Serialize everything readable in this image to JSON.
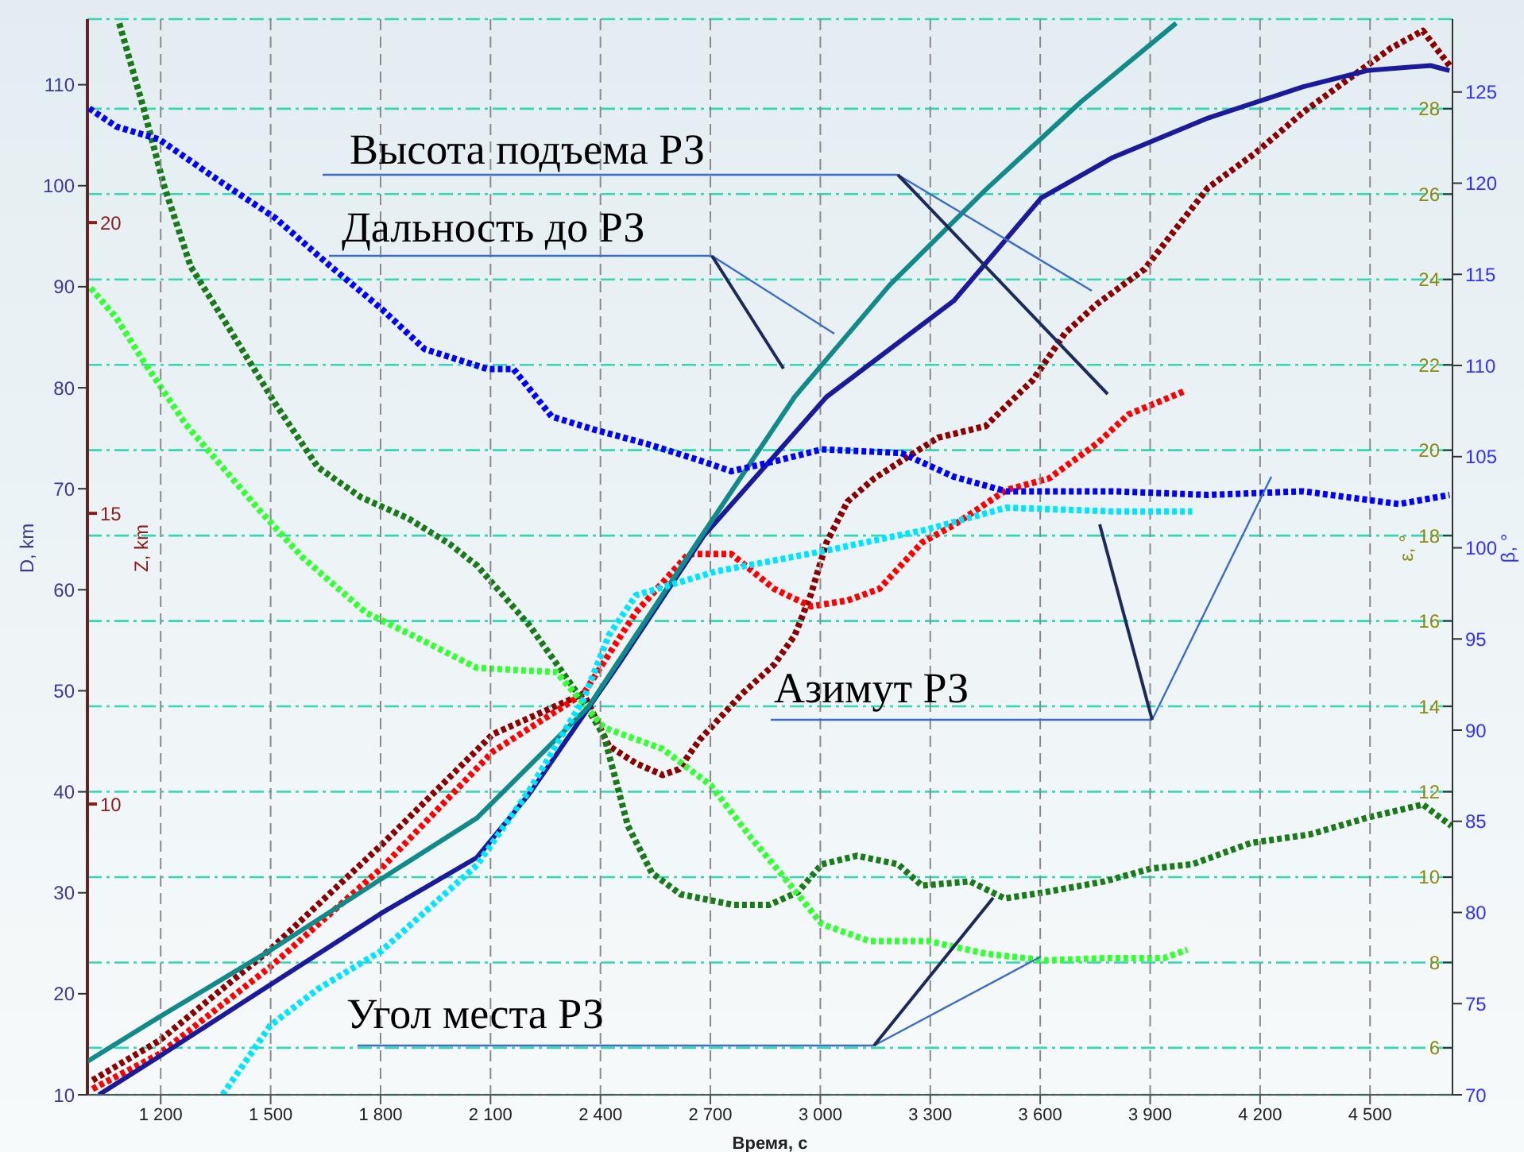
{
  "chart_data": [
    {
      "type": "line",
      "xlabel": "Время, с",
      "ylabel": "D, km",
      "y2label": "β, °",
      "xlim": [
        1000,
        4725
      ],
      "xticks": [
        {
          "value": 1200,
          "label": "1 200"
        },
        {
          "value": 1500,
          "label": "1 500"
        },
        {
          "value": 1800,
          "label": "1 800"
        },
        {
          "value": 2100,
          "label": "2 100"
        },
        {
          "value": 2400,
          "label": "2 400"
        },
        {
          "value": 2700,
          "label": "2 700"
        },
        {
          "value": 3000,
          "label": "3 000"
        },
        {
          "value": 3300,
          "label": "3 300"
        },
        {
          "value": 3600,
          "label": "3 600"
        },
        {
          "value": 3900,
          "label": "3 900"
        },
        {
          "value": 4200,
          "label": "4 200"
        },
        {
          "value": 4500,
          "label": "4 500"
        }
      ],
      "ylim": [
        10,
        116.5
      ],
      "yticks": [
        10,
        20,
        30,
        40,
        50,
        60,
        70,
        80,
        90,
        100,
        110
      ],
      "y2lim": [
        70,
        129
      ],
      "y2ticks": [
        70,
        75,
        80,
        85,
        90,
        95,
        100,
        105,
        110,
        115,
        120,
        125
      ],
      "grid": "x",
      "annotations": [
        "Высота подъема РЗ",
        "Дальность до РЗ",
        "Азимут РЗ",
        "Угол места РЗ"
      ],
      "series": [
        {
          "color": "#1a1a9a",
          "axis": "y",
          "line_style": "solid",
          "x": [
            1031,
            1196,
            1499,
            1803,
            2063,
            2206,
            2453,
            2683,
            3017,
            3364,
            3603,
            3798,
            4058,
            4318,
            4492,
            4665,
            4717
          ],
          "values": [
            10.0,
            13.8,
            20.9,
            28.0,
            33.5,
            39.8,
            52.8,
            65.4,
            79.1,
            88.6,
            98.8,
            102.8,
            106.7,
            109.8,
            111.4,
            111.9,
            111.4
          ]
        },
        {
          "color": "#138a8a",
          "axis": "y",
          "line_style": "solid",
          "x": [
            1000,
            1196,
            1499,
            1803,
            2063,
            2367,
            2670,
            2930,
            3190,
            3451,
            3711,
            3971
          ],
          "values": [
            13.3,
            17.7,
            24.3,
            31.4,
            37.4,
            48.4,
            65.0,
            79.1,
            90.2,
            99.6,
            108.3,
            116.1
          ]
        },
        {
          "color": "#0000ff",
          "axis": "y2",
          "line_style": "dotted",
          "x": [
            1005,
            1079,
            1196,
            1369,
            1512,
            1660,
            1803,
            1920,
            2093,
            2163,
            2267,
            2380,
            2527,
            2670,
            2757,
            2887,
            3004,
            3221,
            3364,
            3507,
            3798,
            4058,
            4318,
            4579,
            4717
          ],
          "values": [
            124.1,
            123.1,
            122.4,
            120.0,
            118.1,
            115.5,
            113.1,
            110.9,
            109.8,
            109.8,
            107.2,
            106.5,
            105.7,
            104.8,
            104.2,
            104.8,
            105.4,
            105.2,
            103.9,
            103.1,
            103.1,
            102.9,
            103.1,
            102.4,
            102.9
          ]
        },
        {
          "color": "#00e5ff",
          "axis": "y2",
          "line_style": "dotted",
          "x": [
            1369,
            1499,
            1629,
            1803,
            2063,
            2206,
            2354,
            2423,
            2497,
            2714,
            3004,
            3290,
            3507,
            3798,
            4015
          ],
          "values": [
            70.0,
            73.8,
            75.8,
            77.9,
            82.6,
            86.7,
            91.7,
            95.2,
            97.4,
            98.7,
            99.8,
            101.0,
            102.2,
            102.0,
            102.0
          ]
        }
      ]
    },
    {
      "type": "line",
      "ylabel": "ε, °",
      "y2label": "Z, km",
      "tick_labels": "y",
      "xlim": [
        1000,
        4725
      ],
      "ylim": [
        4.9,
        30.1
      ],
      "yticks": [
        6,
        8,
        10,
        12,
        14,
        16,
        18,
        20,
        22,
        24,
        26,
        28
      ],
      "y2lim": [
        5,
        23.5
      ],
      "y2ticks": [
        10,
        15,
        20
      ],
      "grid": "y",
      "series": [
        {
          "color": "#8b0000",
          "axis": "y2",
          "line_style": "dotted",
          "x": [
            1014,
            1196,
            1499,
            1803,
            2106,
            2354,
            2423,
            2497,
            2570,
            2614,
            2670,
            2787,
            2874,
            2930,
            2974,
            3017,
            3074,
            3147,
            3221,
            3321,
            3451,
            3581,
            3668,
            3755,
            3885,
            3971,
            4058,
            4188,
            4318,
            4448,
            4557,
            4644,
            4717
          ],
          "values": [
            5.25,
            5.93,
            7.5,
            9.3,
            11.2,
            11.9,
            11.0,
            10.7,
            10.5,
            10.6,
            11.1,
            11.9,
            12.4,
            12.9,
            13.6,
            14.5,
            15.2,
            15.6,
            15.9,
            16.3,
            16.5,
            17.3,
            18.1,
            18.6,
            19.2,
            19.9,
            20.6,
            21.2,
            21.9,
            22.5,
            23.0,
            23.3,
            22.7
          ]
        },
        {
          "color": "#ff0000",
          "axis": "y2",
          "line_style": "dotted",
          "x": [
            1014,
            1196,
            1499,
            1803,
            2106,
            2354,
            2497,
            2640,
            2757,
            2874,
            2974,
            3074,
            3161,
            3278,
            3365,
            3507,
            3624,
            3755,
            3841,
            3993
          ],
          "values": [
            5.1,
            5.7,
            7.2,
            8.9,
            10.9,
            11.9,
            13.3,
            14.3,
            14.3,
            13.7,
            13.4,
            13.5,
            13.7,
            14.5,
            14.8,
            15.4,
            15.6,
            16.2,
            16.7,
            17.1
          ]
        },
        {
          "color": "#1a7a1a",
          "axis": "y",
          "line_style": "dotted",
          "x": [
            1087,
            1152,
            1209,
            1282,
            1369,
            1512,
            1629,
            1746,
            1876,
            1989,
            2063,
            2206,
            2354,
            2410,
            2475,
            2540,
            2618,
            2761,
            2861,
            2939,
            3004,
            3100,
            3212,
            3277,
            3408,
            3503,
            3616,
            3776,
            3902,
            4015,
            4175,
            4336,
            4496,
            4644,
            4722
          ],
          "values": [
            30.0,
            28.05,
            26.2,
            24.3,
            23.1,
            21.1,
            19.6,
            18.9,
            18.4,
            17.8,
            17.3,
            15.9,
            14.1,
            13.3,
            11.2,
            10.1,
            9.6,
            9.35,
            9.35,
            9.65,
            10.3,
            10.5,
            10.3,
            9.8,
            9.9,
            9.5,
            9.65,
            9.9,
            10.2,
            10.3,
            10.8,
            11.0,
            11.4,
            11.7,
            11.2
          ]
        },
        {
          "color": "#33ff33",
          "axis": "y",
          "line_style": "dotted",
          "x": [
            1009,
            1079,
            1152,
            1269,
            1369,
            1469,
            1586,
            1759,
            1890,
            2063,
            2280,
            2410,
            2570,
            2701,
            2813,
            2891,
            3004,
            3134,
            3295,
            3455,
            3616,
            3776,
            3937,
            4002
          ],
          "values": [
            23.8,
            23.1,
            22.1,
            20.6,
            19.6,
            18.6,
            17.5,
            16.2,
            15.65,
            14.9,
            14.8,
            13.5,
            13.0,
            12.15,
            10.9,
            10.1,
            8.9,
            8.5,
            8.5,
            8.2,
            8.05,
            8.1,
            8.1,
            8.3
          ]
        }
      ]
    }
  ]
}
